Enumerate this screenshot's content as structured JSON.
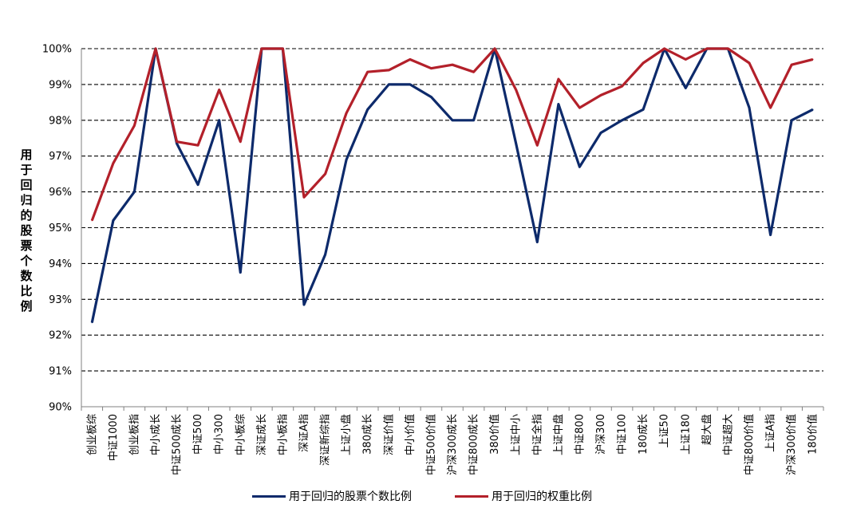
{
  "chart_data": {
    "type": "line",
    "ylabel": "用于回归的股票个数比例",
    "ylim": [
      90,
      100
    ],
    "yticks": [
      "90%",
      "91%",
      "92%",
      "93%",
      "94%",
      "95%",
      "96%",
      "97%",
      "98%",
      "99%",
      "100%"
    ],
    "categories": [
      "创业板综",
      "中证1000",
      "创业板指",
      "中小成长",
      "中证500成长",
      "中证500",
      "中小300",
      "中小板综",
      "深证成长",
      "中小板指",
      "深证A指",
      "深证新综指",
      "上证小盘",
      "380成长",
      "深证价值",
      "中小价值",
      "中证500价值",
      "沪深300成长",
      "中证800成长",
      "380价值",
      "上证中小",
      "中证全指",
      "上证中盘",
      "中证800",
      "沪深300",
      "中证100",
      "180成长",
      "上证50",
      "上证180",
      "超大盘",
      "中证超大",
      "中证800价值",
      "上证A指",
      "沪深300价值",
      "180价值"
    ],
    "series": [
      {
        "name": "用于回归的股票个数比例",
        "color": "#0d2a6b",
        "values": [
          92.35,
          95.2,
          96.0,
          100.0,
          97.35,
          96.2,
          98.0,
          93.75,
          100.0,
          100.0,
          92.85,
          94.25,
          96.9,
          98.3,
          99.0,
          99.0,
          98.65,
          98.0,
          98.0,
          100.0,
          97.35,
          94.6,
          98.45,
          96.7,
          97.65,
          98.0,
          98.3,
          100.0,
          98.9,
          100.0,
          100.0,
          98.35,
          94.8,
          98.0,
          98.3
        ]
      },
      {
        "name": "用于回归的权重比例",
        "color": "#b3202a",
        "values": [
          95.2,
          96.8,
          97.85,
          100.0,
          97.4,
          97.3,
          98.85,
          97.4,
          100.0,
          100.0,
          95.85,
          96.5,
          98.2,
          99.35,
          99.4,
          99.7,
          99.45,
          99.55,
          99.35,
          100.0,
          98.85,
          97.3,
          99.15,
          98.35,
          98.7,
          98.95,
          99.6,
          100.0,
          99.7,
          100.0,
          100.0,
          99.6,
          98.35,
          99.55,
          99.7
        ]
      }
    ],
    "grid": "horizontal dashed",
    "legend_position": "bottom"
  }
}
